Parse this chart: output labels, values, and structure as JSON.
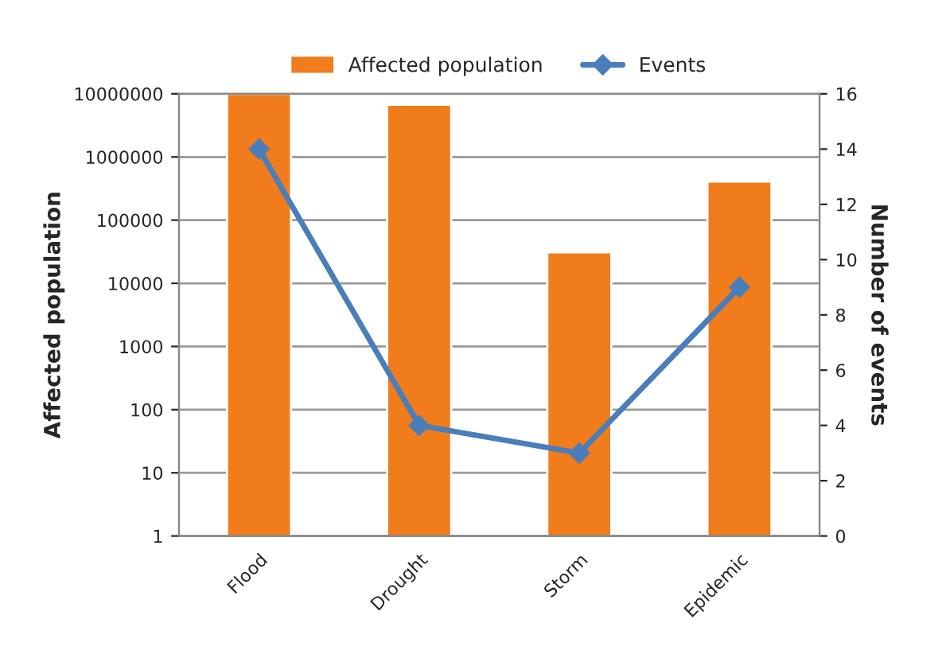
{
  "chart_data": {
    "type": "bar",
    "categories": [
      "Flood",
      "Drought",
      "Storm",
      "Epidemic"
    ],
    "series": [
      {
        "name": "Affected population",
        "color": "#f07c1c",
        "values": [
          10000000,
          6700000,
          31000,
          410000
        ]
      },
      {
        "name": "Events",
        "type": "line",
        "axis": "y2",
        "color": "#4a7ebb",
        "marker": "diamond",
        "values": [
          14,
          4,
          3,
          9
        ]
      }
    ],
    "ylabel": "Affected population",
    "y2label": "Number of events",
    "log": true,
    "ylim": [
      1,
      10000000
    ],
    "yticks": [
      1,
      10,
      100,
      1000,
      10000,
      100000,
      1000000,
      10000000
    ],
    "y2lim": [
      0,
      16
    ],
    "y2ticks": [
      0,
      2,
      4,
      6,
      8,
      10,
      12,
      14,
      16
    ],
    "grid": "y",
    "legend": "top"
  }
}
